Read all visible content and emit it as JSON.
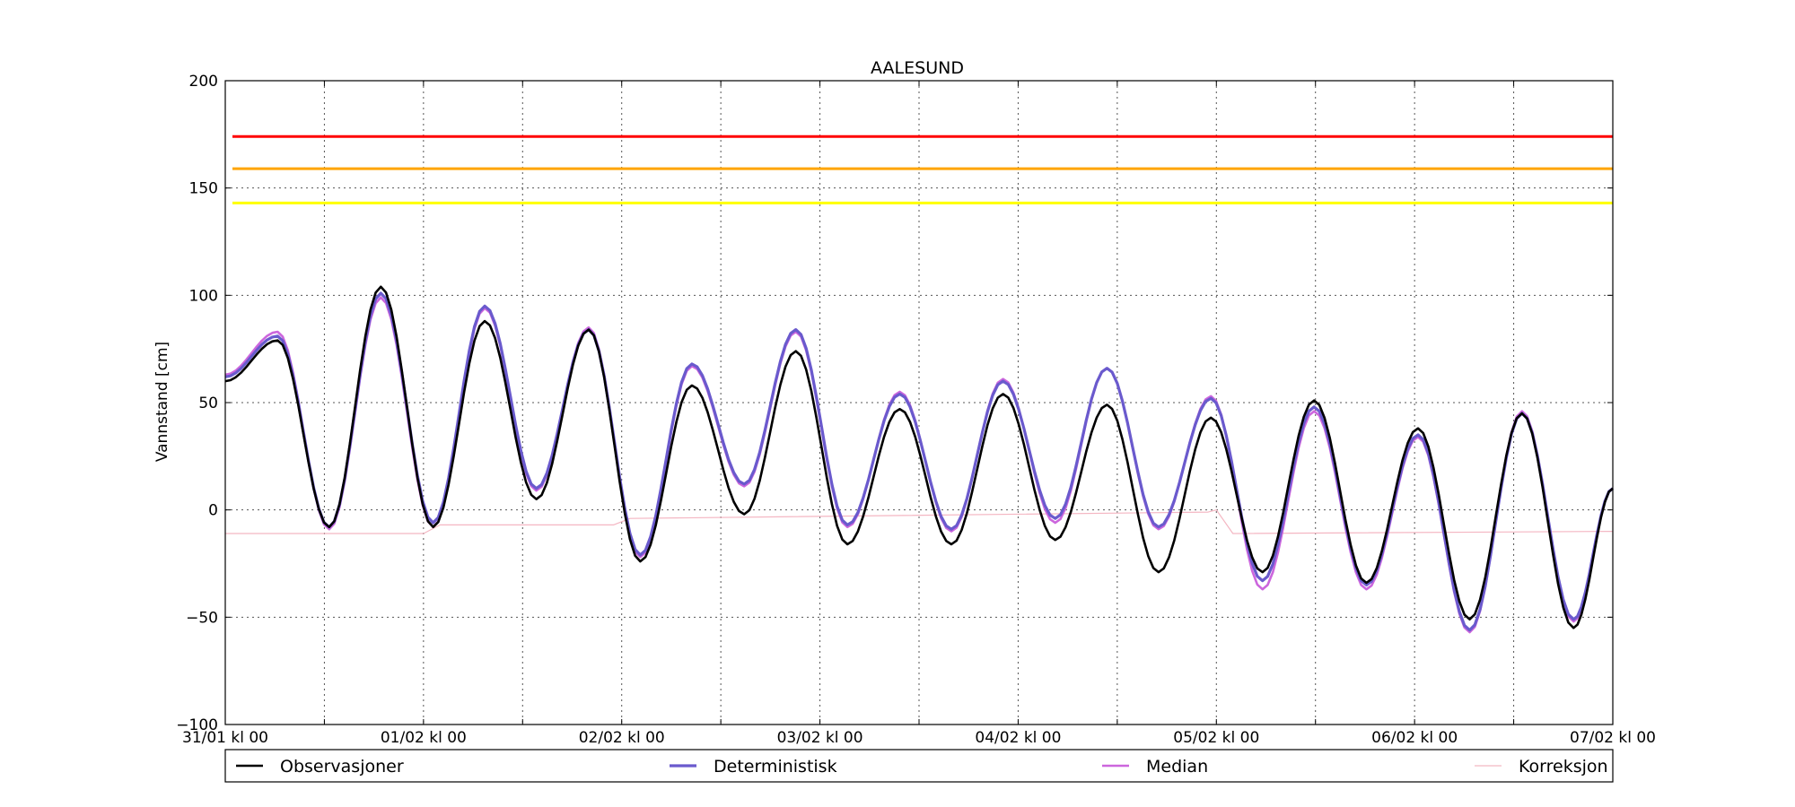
{
  "chart_data": {
    "type": "line",
    "title": "AALESUND",
    "xlabel": "",
    "ylabel": "Vannstand [cm]",
    "ylim": [
      -100,
      200
    ],
    "yticks": [
      -100,
      -50,
      0,
      50,
      100,
      150,
      200
    ],
    "ytick_labels": [
      "−100",
      "−50",
      "0",
      "50",
      "100",
      "150",
      "200"
    ],
    "xlim": [
      "2016-01-31T00:00",
      "2016-02-07T00:00"
    ],
    "xticks": [
      "2016-01-31T00:00",
      "2016-02-01T00:00",
      "2016-02-02T00:00",
      "2016-02-03T00:00",
      "2016-02-04T00:00",
      "2016-02-05T00:00",
      "2016-02-06T00:00",
      "2016-02-07T00:00"
    ],
    "xtick_labels": [
      "31/01 kl 00",
      "01/02 kl 00",
      "02/02 kl 00",
      "03/02 kl 00",
      "04/02 kl 00",
      "05/02 kl 00",
      "06/02 kl 00",
      "07/02 kl 00"
    ],
    "grid": true,
    "legend_position": "bottom",
    "threshold_lines": [
      {
        "value": 174,
        "color": "#ff0000"
      },
      {
        "value": 159,
        "color": "#ffa500"
      },
      {
        "value": 143,
        "color": "#ffff00"
      }
    ],
    "series": [
      {
        "name": "Observasjoner",
        "color": "#000000",
        "x": [
          "2016-01-31T00:00",
          "2016-01-31T06:20",
          "2016-01-31T12:35",
          "2016-01-31T18:50",
          "2016-02-01T01:10",
          "2016-02-01T07:25",
          "2016-02-01T13:40",
          "2016-02-01T20:00",
          "2016-02-02T02:15",
          "2016-02-02T08:30",
          "2016-02-02T14:50",
          "2016-02-02T21:05",
          "2016-02-03T03:20",
          "2016-02-03T09:40",
          "2016-02-03T15:55",
          "2016-02-03T22:10",
          "2016-02-04T04:30",
          "2016-02-04T10:45",
          "2016-02-04T17:00",
          "2016-02-04T23:20",
          "2016-02-05T05:35",
          "2016-02-05T11:50",
          "2016-02-05T18:10",
          "2016-02-06T00:25",
          "2016-02-06T06:40",
          "2016-02-06T13:00",
          "2016-02-06T19:15",
          "2016-02-07T00:00"
        ],
        "values": [
          60,
          79,
          -8,
          104,
          -8,
          88,
          5,
          84,
          -24,
          58,
          -2,
          74,
          -16,
          47,
          -16,
          54,
          -14,
          49,
          -29,
          43,
          -29,
          51,
          -34,
          38,
          -51,
          45,
          -55,
          10
        ]
      },
      {
        "name": "Deterministisk",
        "color": "#6a5acd",
        "x": [
          "2016-01-31T00:00",
          "2016-01-31T06:20",
          "2016-01-31T12:35",
          "2016-01-31T18:50",
          "2016-02-01T01:10",
          "2016-02-01T07:25",
          "2016-02-01T13:40",
          "2016-02-01T20:00",
          "2016-02-02T02:15",
          "2016-02-02T08:30",
          "2016-02-02T14:50",
          "2016-02-02T21:05",
          "2016-02-03T03:20",
          "2016-02-03T09:40",
          "2016-02-03T15:55",
          "2016-02-03T22:10",
          "2016-02-04T04:30",
          "2016-02-04T10:45",
          "2016-02-04T17:00",
          "2016-02-04T23:20",
          "2016-02-05T05:35",
          "2016-02-05T11:50",
          "2016-02-05T18:10",
          "2016-02-06T00:25",
          "2016-02-06T06:40",
          "2016-02-06T13:00",
          "2016-02-06T19:15",
          "2016-02-07T00:00"
        ],
        "values": [
          62,
          81,
          -8,
          101,
          -6,
          95,
          10,
          84,
          -21,
          68,
          12,
          84,
          -7,
          54,
          -9,
          60,
          -4,
          66,
          -8,
          52,
          -33,
          48,
          -35,
          35,
          -56,
          45,
          -51,
          10
        ]
      },
      {
        "name": "Median",
        "color": "#cc66dd",
        "x": [
          "2016-01-31T00:00",
          "2016-01-31T06:20",
          "2016-01-31T12:35",
          "2016-01-31T18:50",
          "2016-02-01T01:10",
          "2016-02-01T07:25",
          "2016-02-01T13:40",
          "2016-02-01T20:00",
          "2016-02-02T02:15",
          "2016-02-02T08:30",
          "2016-02-02T14:50",
          "2016-02-02T21:05",
          "2016-02-03T03:20",
          "2016-02-03T09:40",
          "2016-02-03T15:55",
          "2016-02-03T22:10",
          "2016-02-04T04:30",
          "2016-02-04T10:45",
          "2016-02-04T17:00",
          "2016-02-04T23:20",
          "2016-02-05T05:35",
          "2016-02-05T11:50",
          "2016-02-05T18:10",
          "2016-02-06T00:25",
          "2016-02-06T06:40",
          "2016-02-06T13:00",
          "2016-02-06T19:15",
          "2016-02-07T00:00"
        ],
        "values": [
          63,
          83,
          -9,
          99,
          -8,
          94,
          9,
          85,
          -22,
          67,
          11,
          83,
          -8,
          55,
          -10,
          61,
          -6,
          66,
          -9,
          53,
          -37,
          46,
          -37,
          34,
          -57,
          46,
          -52,
          10
        ]
      },
      {
        "name": "Korreksjon",
        "color": "#f4b6c2",
        "x": [
          "2016-01-31T00:00",
          "2016-02-01T00:00",
          "2016-02-01T02:00",
          "2016-02-01T23:00",
          "2016-02-02T01:00",
          "2016-02-04T23:00",
          "2016-02-05T00:00",
          "2016-02-05T02:00",
          "2016-02-07T00:00"
        ],
        "values": [
          -11,
          -11,
          -7,
          -7,
          -4,
          -1,
          0,
          -11,
          -10
        ]
      }
    ]
  }
}
